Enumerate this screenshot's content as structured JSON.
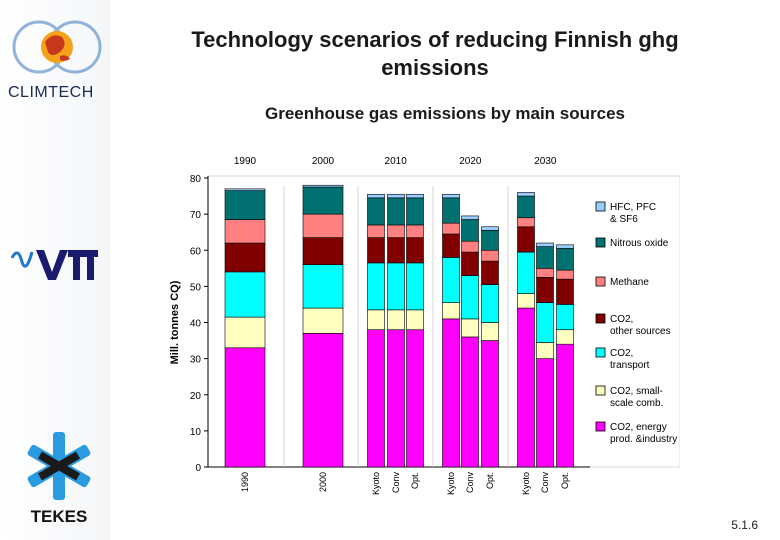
{
  "slide": {
    "title": "Technology scenarios of reducing Finnish ghg emissions",
    "subtitle": "Greenhouse gas emissions by main sources",
    "page_number": "5.1.6",
    "logos": {
      "climtech": "CLIMTECH",
      "vtt": "VTT",
      "tekes": "TEKES"
    }
  },
  "chart_data": {
    "type": "bar",
    "stacked": true,
    "title": "",
    "xlabel": "",
    "ylabel": "Mill. tonnes CQ)",
    "ylim": [
      0,
      80
    ],
    "yticks": [
      0,
      10,
      20,
      30,
      40,
      50,
      60,
      70,
      80
    ],
    "group_labels": [
      "1990",
      "2000",
      "2010",
      "2020",
      "2030"
    ],
    "categories": [
      "1990",
      "2000",
      "Kyoto",
      "Conv",
      "Opt.",
      "Kyoto",
      "Conv",
      "Opt.",
      "Kyoto",
      "Conv",
      "Opt."
    ],
    "groups_index": [
      0,
      1,
      2,
      2,
      2,
      3,
      3,
      3,
      4,
      4,
      4
    ],
    "series": [
      {
        "name": "CO2, energy prod. &industry",
        "color": "#ff00ff",
        "values": [
          33,
          37,
          38,
          38,
          38,
          41,
          36,
          35,
          44,
          30,
          34
        ]
      },
      {
        "name": "CO2, small-scale comb.",
        "color": "#ffffc0",
        "values": [
          8.5,
          7,
          5.5,
          5.5,
          5.5,
          4.5,
          5,
          5,
          4,
          4.5,
          4
        ]
      },
      {
        "name": "CO2, transport",
        "color": "#00ffff",
        "values": [
          12.5,
          12,
          13,
          13,
          13,
          12.5,
          12,
          10.5,
          11.5,
          11,
          7
        ]
      },
      {
        "name": "CO2, other sources",
        "color": "#800000",
        "values": [
          8,
          7.5,
          7,
          7,
          7,
          6.5,
          6.5,
          6.5,
          7,
          7,
          7
        ]
      },
      {
        "name": "Methane",
        "color": "#ff8080",
        "values": [
          6.5,
          6.5,
          3.5,
          3.5,
          3.5,
          3,
          3,
          3,
          2.5,
          2.5,
          2.5
        ]
      },
      {
        "name": "Nitrous oxide",
        "color": "#007070",
        "values": [
          8,
          7.5,
          7.5,
          7.5,
          7.5,
          7,
          6,
          5.5,
          6,
          6,
          6
        ]
      },
      {
        "name": "HFC, PFC & SF6",
        "color": "#99ccff",
        "values": [
          0.5,
          0.5,
          1,
          1,
          1,
          1,
          1,
          1,
          1,
          1,
          1
        ]
      }
    ],
    "legend_placement": "right",
    "legend": [
      {
        "label": "HFC, PFC & SF6",
        "color": "#99ccff"
      },
      {
        "label": "Nitrous oxide",
        "color": "#007070"
      },
      {
        "label": "Methane",
        "color": "#ff8080"
      },
      {
        "label": "CO2, other sources",
        "color": "#800000"
      },
      {
        "label": "CO2, transport",
        "color": "#00ffff"
      },
      {
        "label": "CO2, small-scale comb.",
        "color": "#ffffc0"
      },
      {
        "label": "CO2, energy prod. &industry",
        "color": "#ff00ff"
      }
    ],
    "grid": false,
    "background": "#ffffff"
  }
}
